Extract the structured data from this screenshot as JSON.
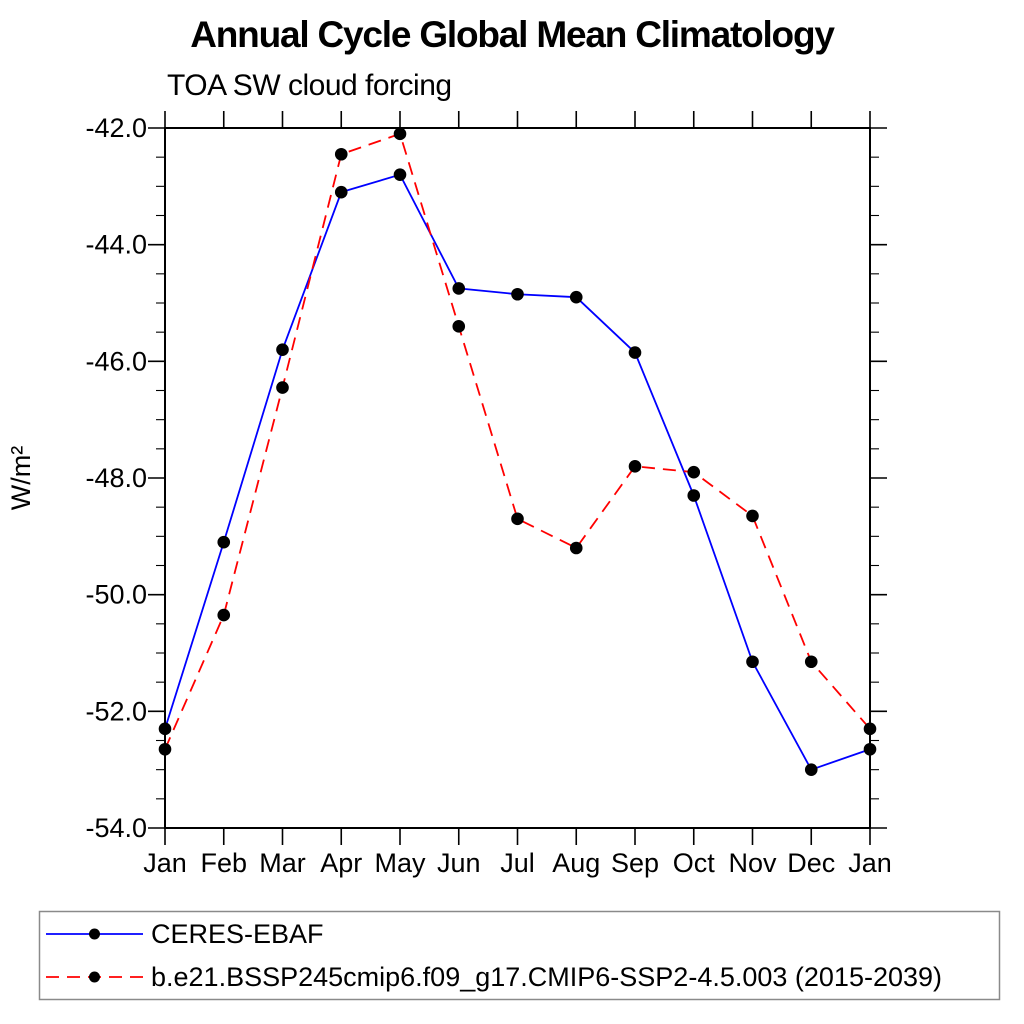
{
  "page": {
    "background": "#ffffff"
  },
  "chart_data": {
    "type": "line",
    "title": "Annual Cycle Global Mean Climatology",
    "subtitle": "TOA SW cloud forcing",
    "ylabel": "W/m²",
    "xlabel": "",
    "categories": [
      "Jan",
      "Feb",
      "Mar",
      "Apr",
      "May",
      "Jun",
      "Jul",
      "Aug",
      "Sep",
      "Oct",
      "Nov",
      "Dec",
      "Jan"
    ],
    "ylim": [
      -54.0,
      -42.0
    ],
    "y_major_step": 2.0,
    "y_minor_step": 0.5,
    "y_tick_labels": [
      "-42.0",
      "-44.0",
      "-46.0",
      "-48.0",
      "-50.0",
      "-52.0",
      "-54.0"
    ],
    "grid": "off",
    "legend_position": "bottom-box",
    "axis_color": "#000000",
    "marker_color": "#000000",
    "legend_border_color": "#8a8a8a",
    "series": [
      {
        "name": "CERES-EBAF",
        "color": "#0000ff",
        "line_style": "solid",
        "marker": "filled-circle",
        "values": [
          -52.3,
          -49.1,
          -45.8,
          -43.1,
          -42.8,
          -44.75,
          -44.85,
          -44.9,
          -45.85,
          -48.3,
          -51.15,
          -53.0,
          -52.65
        ]
      },
      {
        "name": "b.e21.BSSP245cmip6.f09_g17.CMIP6-SSP2-4.5.003 (2015-2039)",
        "color": "#ff0000",
        "line_style": "dashed",
        "marker": "filled-circle",
        "values": [
          -52.65,
          -50.35,
          -46.45,
          -42.45,
          -42.1,
          -45.4,
          -48.7,
          -49.2,
          -47.8,
          -47.9,
          -48.65,
          -51.15,
          -52.3
        ]
      }
    ]
  }
}
